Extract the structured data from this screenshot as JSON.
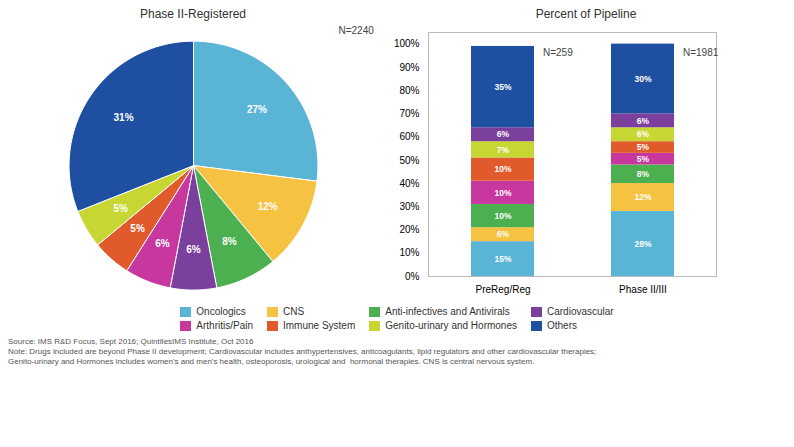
{
  "chart_data": [
    {
      "type": "pie",
      "title": "Phase II-Registered",
      "categories": [
        "Oncologics",
        "CNS",
        "Anti-infectives and Antivirals",
        "Cardiovascular",
        "Arthritis/Pain",
        "Immune System",
        "Genito-urinary and Hormones",
        "Others"
      ],
      "values": [
        27,
        12,
        8,
        6,
        6,
        5,
        5,
        31
      ],
      "colors": [
        "#5ab4d6",
        "#f5c242",
        "#4caf50",
        "#7b3f9e",
        "#c8379e",
        "#e05a2b",
        "#c8d633",
        "#1e4fa0"
      ],
      "data_labels": true,
      "value_labels": [
        "27%",
        "12%",
        "8%",
        "6%",
        "6%",
        "5%",
        "5%",
        "31%"
      ],
      "annotations": [
        "N=2240"
      ],
      "legend": "bottom"
    },
    {
      "type": "bar",
      "title": "Percent of Pipeline",
      "stacked": true,
      "categories": [
        "PreReg/Reg",
        "Phase II/III"
      ],
      "series": [
        {
          "name": "Oncologics",
          "color": "#5ab4d6",
          "values": [
            15,
            28
          ],
          "value_labels": [
            "15%",
            "28%"
          ]
        },
        {
          "name": "CNS",
          "color": "#f5c242",
          "values": [
            6,
            12
          ],
          "value_labels": [
            "6%",
            "12%"
          ]
        },
        {
          "name": "Anti-infectives and Antivirals",
          "color": "#4caf50",
          "values": [
            10,
            8
          ],
          "value_labels": [
            "10%",
            "8%"
          ]
        },
        {
          "name": "Arthritis/Pain",
          "color": "#c8379e",
          "values": [
            10,
            5
          ],
          "value_labels": [
            "10%",
            "5%"
          ]
        },
        {
          "name": "Immune System",
          "color": "#e05a2b",
          "values": [
            10,
            5
          ],
          "value_labels": [
            "10%",
            "5%"
          ]
        },
        {
          "name": "Genito-urinary and Hormones",
          "color": "#c8d633",
          "values": [
            7,
            6
          ],
          "value_labels": [
            "7%",
            "6%"
          ]
        },
        {
          "name": "Cardiovascular",
          "color": "#7b3f9e",
          "values": [
            6,
            6
          ],
          "value_labels": [
            "6%",
            "6%"
          ]
        },
        {
          "name": "Others",
          "color": "#1e4fa0",
          "values": [
            35,
            30
          ],
          "value_labels": [
            "35%",
            "30%"
          ]
        }
      ],
      "ylim": [
        0,
        105
      ],
      "yticks": [
        {
          "value": 0,
          "label": "0%"
        },
        {
          "value": 10,
          "label": "10%"
        },
        {
          "value": 20,
          "label": "20%"
        },
        {
          "value": 30,
          "label": "30%"
        },
        {
          "value": 40,
          "label": "40%"
        },
        {
          "value": 50,
          "label": "50%"
        },
        {
          "value": 60,
          "label": "60%"
        },
        {
          "value": 70,
          "label": "70%"
        },
        {
          "value": 80,
          "label": "80%"
        },
        {
          "value": 90,
          "label": "90%"
        },
        {
          "value": 100,
          "label": "100%"
        }
      ],
      "data_labels": true,
      "annotations": [
        "N=259",
        "N=1981"
      ],
      "grid": false
    }
  ],
  "footnotes": [
    "Source: IMS R&D Focus, Sept 2016; QuintIlesIMS Institute, Oct 2016",
    "Note: Drugs included are beyond Phase II development; Cardiovascular includes anthypertensives, anticoagulants, lipid regulators and other cardiovascular therapies;",
    "Genito-urinary and Hormones includes women's and men's health, osteoporosis, urological and  hormonal therapies. CNS is central nervous system."
  ]
}
